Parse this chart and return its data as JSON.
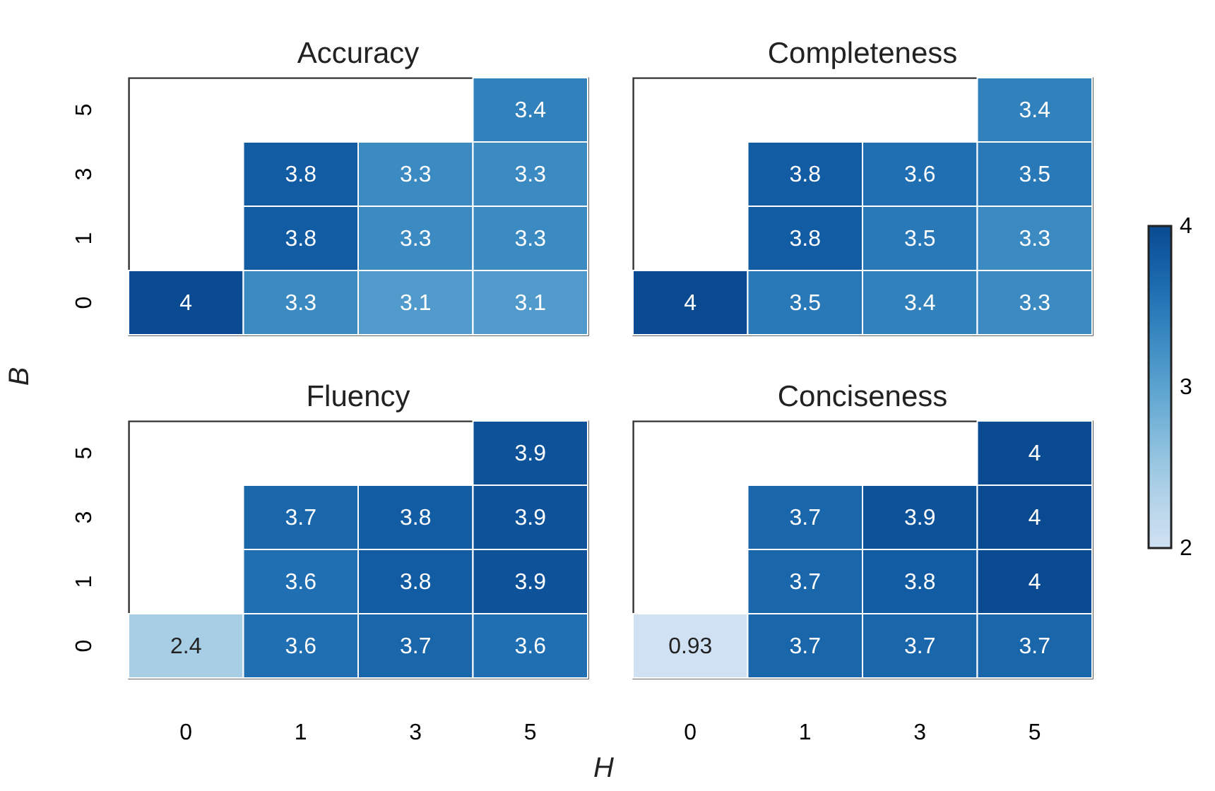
{
  "chart_data": [
    {
      "type": "heatmap",
      "title": "Accuracy",
      "ylabel": "B",
      "categories": [
        "0",
        "1",
        "3",
        "5"
      ],
      "y_categories": [
        "5",
        "3",
        "1",
        "0"
      ],
      "cells": [
        [
          null,
          null,
          null,
          3.4
        ],
        [
          null,
          3.8,
          3.3,
          3.3
        ],
        [
          null,
          3.8,
          3.3,
          3.3
        ],
        [
          4,
          3.3,
          3.1,
          3.1
        ]
      ],
      "data_labels": true,
      "tick_labels": "y"
    },
    {
      "type": "heatmap",
      "title": "Completeness",
      "categories": [
        "0",
        "1",
        "3",
        "5"
      ],
      "y_categories": [
        "5",
        "3",
        "1",
        "0"
      ],
      "cells": [
        [
          null,
          null,
          null,
          3.4
        ],
        [
          null,
          3.8,
          3.6,
          3.5
        ],
        [
          null,
          3.8,
          3.5,
          3.3
        ],
        [
          4,
          3.5,
          3.4,
          3.3
        ]
      ],
      "data_labels": true,
      "clim": [
        2,
        4
      ],
      "cticks": [
        2,
        3,
        4
      ],
      "tick_labels": false
    },
    {
      "type": "heatmap",
      "title": "Fluency",
      "xlabel": "H",
      "categories": [
        "0",
        "1",
        "3",
        "5"
      ],
      "y_categories": [
        "5",
        "3",
        "1",
        "0"
      ],
      "cells": [
        [
          null,
          null,
          null,
          3.9
        ],
        [
          null,
          3.7,
          3.8,
          3.9
        ],
        [
          null,
          3.6,
          3.8,
          3.9
        ],
        [
          2.4,
          3.6,
          3.7,
          3.6
        ]
      ],
      "data_labels": true
    },
    {
      "type": "heatmap",
      "title": "Conciseness",
      "categories": [
        "0",
        "1",
        "3",
        "5"
      ],
      "y_categories": [
        "5",
        "3",
        "1",
        "0"
      ],
      "cells": [
        [
          null,
          null,
          null,
          4
        ],
        [
          null,
          3.7,
          3.9,
          4
        ],
        [
          null,
          3.7,
          3.8,
          4
        ],
        [
          0.93,
          3.7,
          3.7,
          3.7
        ]
      ],
      "data_labels": true,
      "tick_labels": "x"
    }
  ]
}
